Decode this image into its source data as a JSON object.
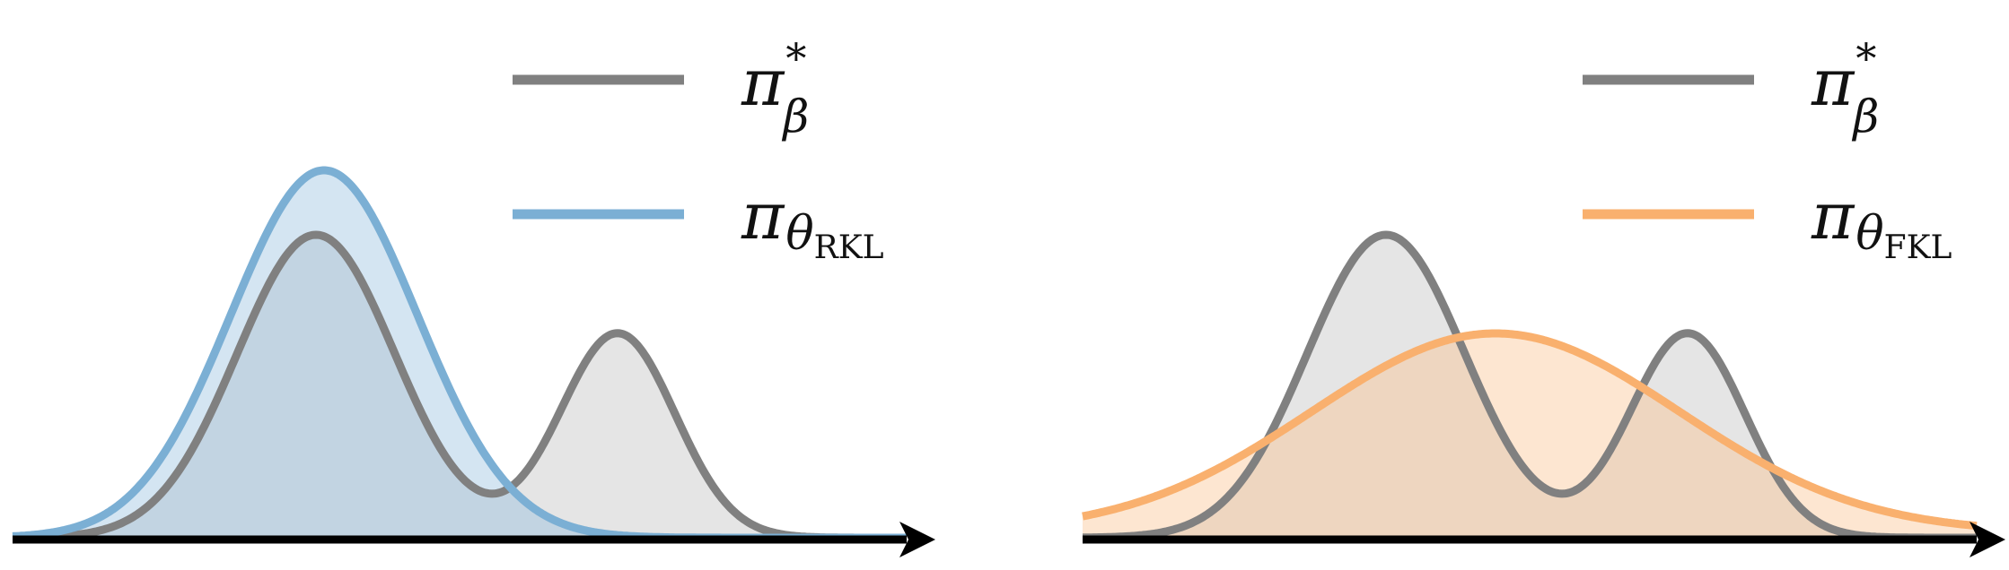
{
  "panels": [
    {
      "id": "rkl",
      "legend": [
        {
          "symbol": "π",
          "superscript": "*",
          "subscript": "β",
          "subscript2": "",
          "color": "#808080"
        },
        {
          "symbol": "π",
          "superscript": "",
          "subscript": "θ",
          "subscript2": "RKL",
          "color": "#7BAFD4"
        }
      ],
      "curves": {
        "target": {
          "stroke": "#808080",
          "fill": "#e5e5e5"
        },
        "model": {
          "stroke": "#7BAFD4",
          "fill": "#d4e5f2"
        },
        "overlap_fill": "#c2d4e2"
      }
    },
    {
      "id": "fkl",
      "legend": [
        {
          "symbol": "π",
          "superscript": "*",
          "subscript": "β",
          "subscript2": "",
          "color": "#808080"
        },
        {
          "symbol": "π",
          "superscript": "",
          "subscript": "θ",
          "subscript2": "FKL",
          "color": "#F9B06E"
        }
      ],
      "curves": {
        "target": {
          "stroke": "#808080",
          "fill": "#e5e5e5"
        },
        "model": {
          "stroke": "#F9B06E",
          "fill": "#fde6d1"
        },
        "overlap_fill": "#eed6c0"
      }
    }
  ],
  "axis_color": "#000000"
}
